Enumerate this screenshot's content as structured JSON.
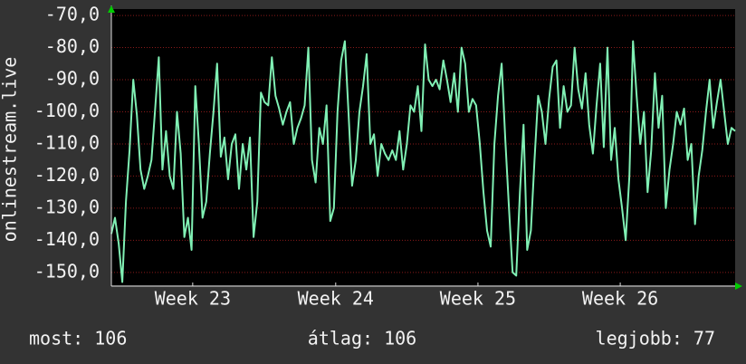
{
  "chart_data": {
    "type": "line",
    "y_label": "onlinestream.live",
    "series": [
      {
        "name": "onlinestream.live",
        "color": "#80f0b4",
        "values": [
          -138,
          -133,
          -141,
          -153,
          -128,
          -112,
          -90,
          -101,
          -118,
          -124,
          -120,
          -115,
          -99,
          -83,
          -118,
          -106,
          -120,
          -124,
          -100,
          -113,
          -139,
          -133,
          -143,
          -92,
          -110,
          -133,
          -128,
          -113,
          -100,
          -85,
          -114,
          -108,
          -121,
          -110,
          -107,
          -124,
          -110,
          -118,
          -108,
          -139,
          -128,
          -94,
          -97,
          -98,
          -83,
          -95,
          -99,
          -104,
          -100,
          -97,
          -110,
          -105,
          -102,
          -98,
          -80,
          -115,
          -122,
          -105,
          -110,
          -98,
          -134,
          -130,
          -100,
          -84,
          -78,
          -100,
          -123,
          -115,
          -100,
          -92,
          -82,
          -110,
          -107,
          -120,
          -110,
          -113,
          -115,
          -112,
          -115,
          -106,
          -118,
          -110,
          -98,
          -100,
          -92,
          -106,
          -79,
          -90,
          -92,
          -90,
          -93,
          -84,
          -90,
          -97,
          -88,
          -100,
          -80,
          -85,
          -100,
          -96,
          -98,
          -110,
          -125,
          -137,
          -142,
          -110,
          -95,
          -85,
          -109,
          -130,
          -150,
          -151,
          -125,
          -104,
          -143,
          -137,
          -115,
          -95,
          -100,
          -110,
          -96,
          -86,
          -84,
          -105,
          -92,
          -100,
          -98,
          -80,
          -93,
          -99,
          -88,
          -104,
          -113,
          -98,
          -85,
          -111,
          -80,
          -115,
          -105,
          -121,
          -130,
          -140,
          -120,
          -78,
          -95,
          -110,
          -100,
          -125,
          -112,
          -88,
          -105,
          -95,
          -130,
          -118,
          -110,
          -100,
          -104,
          -99,
          -115,
          -110,
          -135,
          -120,
          -112,
          -100,
          -90,
          -105,
          -97,
          -90,
          -100,
          -110,
          -105,
          -106
        ]
      }
    ],
    "xlim": [
      0,
      171
    ],
    "xticks": [
      {
        "value": 22.3,
        "label": "Week 23"
      },
      {
        "value": 61.5,
        "label": "Week 24"
      },
      {
        "value": 100.5,
        "label": "Week 25"
      },
      {
        "value": 139.5,
        "label": "Week 26"
      }
    ],
    "ylim": [
      -154,
      -68
    ],
    "yticks": [
      {
        "value": -70,
        "label": "-70,0"
      },
      {
        "value": -80,
        "label": "-80,0"
      },
      {
        "value": -90,
        "label": "-90,0"
      },
      {
        "value": -100,
        "label": "-100,0"
      },
      {
        "value": -110,
        "label": "-110,0"
      },
      {
        "value": -120,
        "label": "-120,0"
      },
      {
        "value": -130,
        "label": "-130,0"
      },
      {
        "value": -140,
        "label": "-140,0"
      },
      {
        "value": -150,
        "label": "-150,0"
      }
    ],
    "grid": true,
    "footer": [
      "most: 106",
      "átlag: 106",
      "legjobb: 77"
    ]
  }
}
